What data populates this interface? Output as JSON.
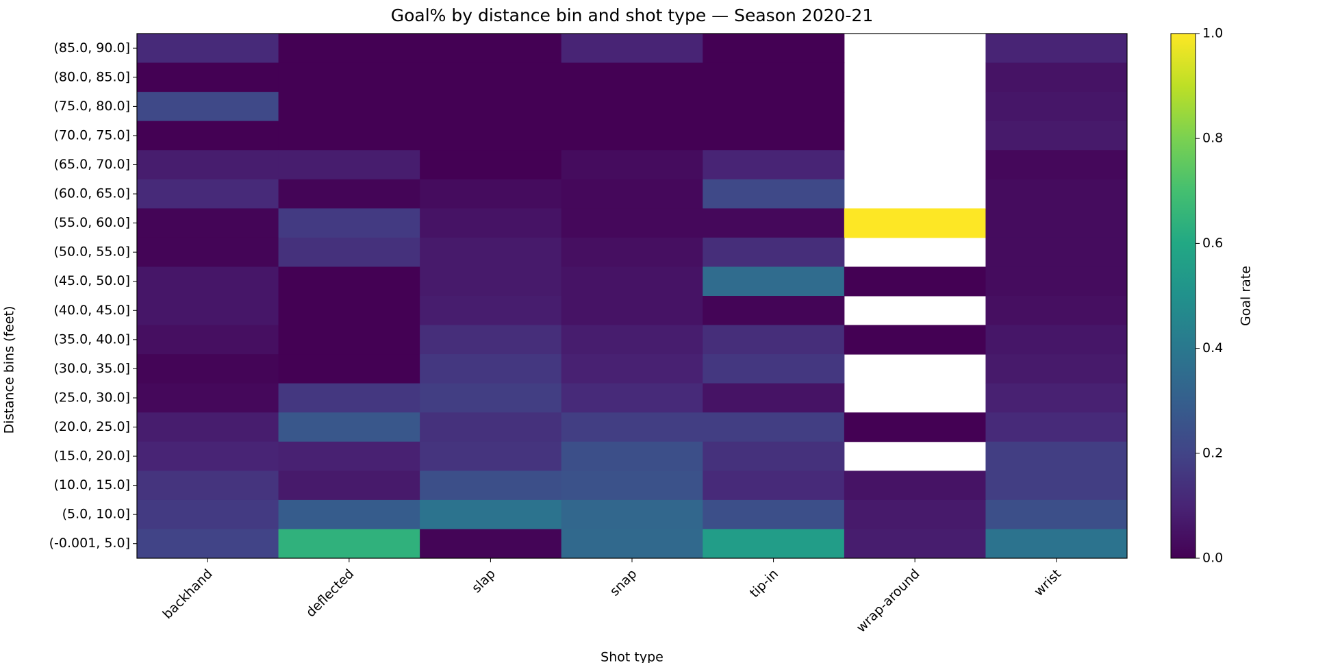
{
  "chart_data": {
    "type": "heatmap",
    "title": "Goal% by distance bin and shot type — Season 2020-21",
    "x_label": "Shot type",
    "y_label": "Distance bins (feet)",
    "categories": [
      "backhand",
      "deflected",
      "slap",
      "snap",
      "tip-in",
      "wrap-around",
      "wrist"
    ],
    "y_categories": [
      "(85.0, 90.0]",
      "(80.0, 85.0]",
      "(75.0, 80.0]",
      "(70.0, 75.0]",
      "(65.0, 70.0]",
      "(60.0, 65.0]",
      "(55.0, 60.0]",
      "(50.0, 55.0]",
      "(45.0, 50.0]",
      "(40.0, 45.0]",
      "(35.0, 40.0]",
      "(30.0, 35.0]",
      "(25.0, 30.0]",
      "(20.0, 25.0]",
      "(15.0, 20.0]",
      "(10.0, 15.0]",
      "(5.0, 10.0]",
      "(-0.001, 5.0]"
    ],
    "values": [
      [
        0.12,
        0,
        0,
        0.1,
        0,
        null,
        0.1
      ],
      [
        0,
        0,
        0,
        0,
        0,
        null,
        0.05
      ],
      [
        0.22,
        0,
        0,
        0,
        0,
        null,
        0.06
      ],
      [
        0,
        0,
        0,
        0,
        0,
        null,
        0.07
      ],
      [
        0.08,
        0.08,
        0,
        0.03,
        0.1,
        null,
        0.02
      ],
      [
        0.12,
        0.01,
        0.03,
        0.02,
        0.22,
        null,
        0.03
      ],
      [
        0.01,
        0.17,
        0.05,
        0.02,
        0.02,
        1.0,
        0.03
      ],
      [
        0.01,
        0.14,
        0.07,
        0.04,
        0.13,
        null,
        0.03
      ],
      [
        0.06,
        0,
        0.07,
        0.05,
        0.35,
        0,
        0.03
      ],
      [
        0.06,
        0,
        0.08,
        0.05,
        0.01,
        null,
        0.04
      ],
      [
        0.04,
        0,
        0.13,
        0.08,
        0.13,
        0,
        0.06
      ],
      [
        0.01,
        0,
        0.16,
        0.09,
        0.16,
        null,
        0.07
      ],
      [
        0.02,
        0.16,
        0.18,
        0.12,
        0.05,
        null,
        0.09
      ],
      [
        0.08,
        0.27,
        0.14,
        0.18,
        0.18,
        0,
        0.12
      ],
      [
        0.1,
        0.09,
        0.15,
        0.24,
        0.14,
        null,
        0.18
      ],
      [
        0.15,
        0.07,
        0.24,
        0.25,
        0.12,
        0.05,
        0.18
      ],
      [
        0.17,
        0.29,
        0.38,
        0.33,
        0.24,
        0.07,
        0.24
      ],
      [
        0.2,
        0.64,
        0.01,
        0.34,
        0.55,
        0.08,
        0.38
      ]
    ],
    "cmap": "viridis",
    "colorbar": {
      "label": "Goal rate",
      "lim": [
        0,
        1
      ],
      "ticks": [
        {
          "value": 0,
          "label": "0.0"
        },
        0.2,
        0.4,
        0.6,
        0.8,
        {
          "value": 1,
          "label": "1.0"
        }
      ]
    }
  }
}
